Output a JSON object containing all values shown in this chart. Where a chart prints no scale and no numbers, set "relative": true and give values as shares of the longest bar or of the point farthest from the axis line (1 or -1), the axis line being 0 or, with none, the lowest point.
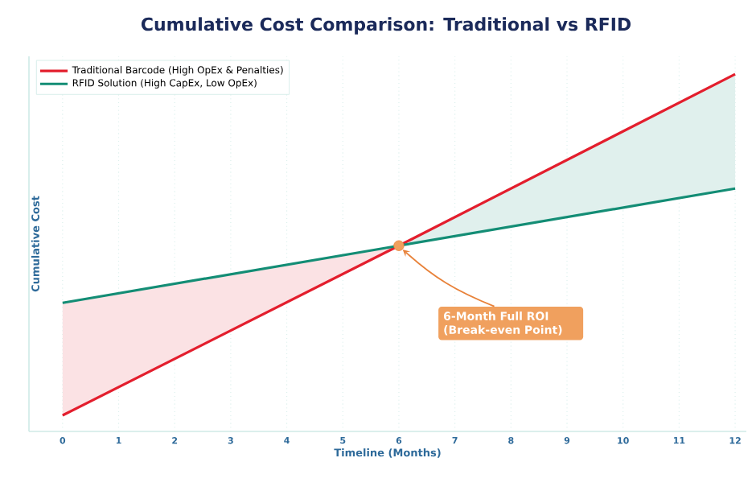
{
  "chart_data": {
    "type": "line",
    "title": "Cumulative Cost Comparison: Traditional vs RFID",
    "xlabel": "Timeline (Months)",
    "ylabel": "Cumulative Cost",
    "x": [
      0,
      6,
      12
    ],
    "relative": true,
    "xlim": [
      -0.6,
      12.2
    ],
    "xticks": [
      0,
      1,
      2,
      3,
      4,
      5,
      6,
      7,
      8,
      9,
      10,
      11,
      12
    ],
    "grid": "x",
    "legend": "top left",
    "tick_labels": "x",
    "marker": "none",
    "line_style": "solid",
    "series": [
      {
        "name": "Traditional Barcode (High OpEx & Penalties)",
        "color": "#e31e2d",
        "values": [
          0.045,
          0.52,
          1
        ],
        "lower": [
          0.045,
          0.52,
          null
        ],
        "upper": [
          0.36,
          0.52,
          null
        ]
      },
      {
        "name": "RFID Solution (High CapEx, Low OpEx)",
        "color": "#138d75",
        "values": [
          0.36,
          0.52,
          0.68
        ],
        "lower": [
          null,
          0.52,
          0.68
        ],
        "upper": [
          null,
          0.52,
          1
        ]
      }
    ],
    "annotations": [
      {
        "text": "6-Month Full ROI (Break-even Point)",
        "x": 6,
        "y": 0.52
      }
    ]
  }
}
